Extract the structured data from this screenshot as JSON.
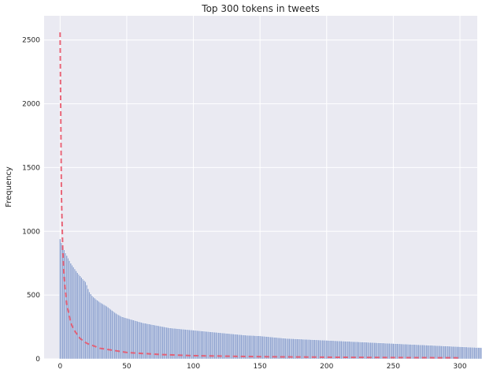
{
  "chart_data": {
    "type": "bar",
    "title": "Top 300 tokens in tweets",
    "xlabel": "",
    "ylabel": "Frequency",
    "xlim": [
      -12,
      313
    ],
    "ylim": [
      0,
      2690
    ],
    "x_ticks": [
      0,
      50,
      100,
      150,
      200,
      250,
      300
    ],
    "y_ticks": [
      0,
      500,
      1000,
      1500,
      2000,
      2500
    ],
    "grid": true,
    "style": "seaborn-darkgrid",
    "series": [
      {
        "type": "bar",
        "color": "#8ea2cf",
        "x_start": 0,
        "values": [
          940,
          910,
          880,
          855,
          830,
          810,
          790,
          770,
          750,
          735,
          720,
          705,
          690,
          675,
          662,
          650,
          638,
          626,
          615,
          604,
          580,
          550,
          525,
          508,
          495,
          485,
          476,
          467,
          459,
          451,
          444,
          437,
          431,
          425,
          419,
          413,
          405,
          396,
          388,
          380,
          372,
          364,
          357,
          350,
          344,
          338,
          333,
          329,
          325,
          322,
          319,
          316,
          313,
          310,
          307,
          304,
          301,
          298,
          295,
          292,
          289,
          286,
          283,
          281,
          279,
          277,
          275,
          273,
          271,
          269,
          267,
          265,
          263,
          261,
          259,
          257,
          255,
          253,
          251,
          249,
          247,
          245,
          243,
          242,
          241,
          240,
          239,
          238,
          237,
          236,
          235,
          234,
          233,
          232,
          231,
          230,
          229,
          228,
          227,
          226,
          225,
          224,
          223,
          222,
          221,
          220,
          219,
          218,
          217,
          216,
          215,
          214,
          213,
          212,
          211,
          210,
          209,
          208,
          207,
          206,
          205,
          204,
          203,
          202,
          201,
          200,
          199,
          198,
          197,
          196,
          195,
          194,
          193,
          192,
          191,
          190,
          189,
          188,
          187,
          186,
          185,
          185,
          184,
          184,
          183,
          183,
          182,
          182,
          181,
          181,
          180,
          179,
          178,
          177,
          176,
          175,
          174,
          173,
          172,
          171,
          170,
          169,
          168,
          167,
          166,
          165,
          164,
          163,
          162,
          161,
          160,
          160,
          159,
          159,
          158,
          158,
          157,
          157,
          156,
          156,
          155,
          155,
          154,
          154,
          153,
          153,
          152,
          152,
          151,
          151,
          150,
          150,
          149,
          149,
          148,
          148,
          147,
          147,
          146,
          146,
          145,
          145,
          144,
          144,
          143,
          143,
          142,
          142,
          141,
          141,
          140,
          140,
          139,
          139,
          138,
          138,
          137,
          137,
          136,
          136,
          135,
          135,
          134,
          134,
          133,
          133,
          132,
          132,
          131,
          131,
          130,
          130,
          129,
          129,
          128,
          128,
          127,
          127,
          126,
          126,
          125,
          125,
          124,
          124,
          123,
          123,
          122,
          122,
          121,
          121,
          120,
          120,
          119,
          119,
          118,
          118,
          117,
          117,
          116,
          116,
          115,
          115,
          114,
          114,
          113,
          113,
          112,
          112,
          111,
          111,
          110,
          110,
          109,
          109,
          108,
          108,
          107,
          107,
          106,
          106,
          105,
          105,
          104,
          104,
          103,
          103,
          102,
          102,
          101,
          101,
          100,
          100,
          99,
          99,
          98,
          98,
          97,
          97,
          96,
          96,
          95,
          95,
          94,
          94,
          93,
          93,
          92,
          92,
          91,
          91,
          90,
          90,
          89,
          89,
          88,
          88,
          87,
          87,
          86,
          86
        ]
      },
      {
        "type": "line",
        "style": "dashed",
        "color": "#e8566a",
        "x": [
          0,
          1,
          2,
          3,
          5,
          8,
          10,
          15,
          20,
          30,
          50,
          75,
          100,
          150,
          200,
          250,
          300
        ],
        "values": [
          2560,
          1280,
          853,
          640,
          427,
          284,
          233,
          160,
          122,
          83,
          50,
          34,
          25,
          17,
          13,
          10,
          8
        ]
      }
    ]
  }
}
